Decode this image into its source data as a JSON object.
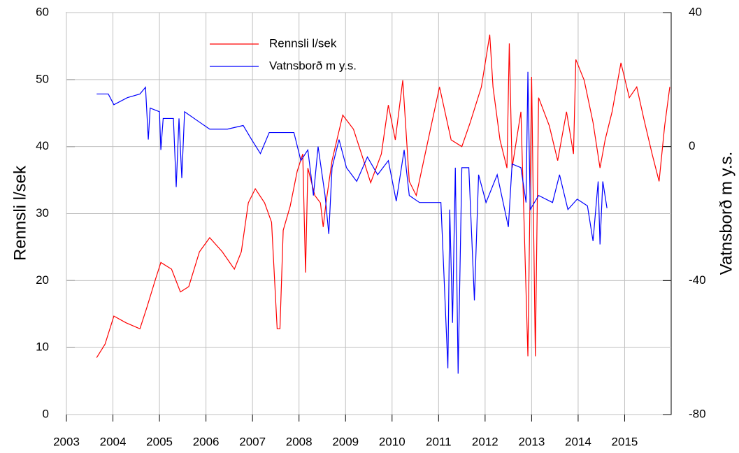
{
  "chart_data": {
    "type": "line",
    "ylabel": "Rennsli l/sek",
    "y2label": "Vatnsborð m y.s.",
    "xlim": [
      2003,
      2016
    ],
    "xticks": [
      2003,
      2004,
      2005,
      2006,
      2007,
      2008,
      2009,
      2010,
      2011,
      2012,
      2013,
      2014,
      2015
    ],
    "ylim": [
      0,
      60
    ],
    "yticks": [
      0,
      10,
      20,
      30,
      40,
      50,
      60
    ],
    "y2lim": [
      -80,
      40
    ],
    "y2ticks": [
      -80,
      -40,
      0,
      40
    ],
    "grid": true,
    "legend": "upper center",
    "series": [
      {
        "name": "Rennsli l/sek",
        "color": "#ff0000",
        "x": [
          2003.65,
          2003.83,
          2004.02,
          2004.28,
          2004.58,
          2004.73,
          2004.91,
          2005.03,
          2005.26,
          2005.45,
          2005.63,
          2005.86,
          2006.08,
          2006.35,
          2006.61,
          2006.76,
          2006.91,
          2007.06,
          2007.26,
          2007.41,
          2007.53,
          2007.59,
          2007.66,
          2007.81,
          2007.96,
          2008.08,
          2008.14,
          2008.19,
          2008.34,
          2008.46,
          2008.52,
          2008.58,
          2008.71,
          2008.94,
          2009.17,
          2009.39,
          2009.54,
          2009.77,
          2009.92,
          2010.07,
          2010.23,
          2010.37,
          2010.52,
          2011.02,
          2011.27,
          2011.5,
          2011.68,
          2011.92,
          2012.1,
          2012.17,
          2012.32,
          2012.47,
          2012.52,
          2012.58,
          2012.77,
          2012.92,
          2013.0,
          2013.08,
          2013.15,
          2013.38,
          2013.56,
          2013.75,
          2013.9,
          2013.95,
          2014.13,
          2014.32,
          2014.47,
          2014.58,
          2014.73,
          2014.92,
          2015.1,
          2015.26,
          2015.41,
          2015.59,
          2015.74,
          2015.86,
          2015.97
        ],
        "values": [
          8.5,
          10.5,
          14.7,
          13.7,
          12.8,
          16,
          20.1,
          22.7,
          21.7,
          18.3,
          19.1,
          24.3,
          26.4,
          24.3,
          21.7,
          24.3,
          31.6,
          33.7,
          31.6,
          28.7,
          12.8,
          12.8,
          27.5,
          31.1,
          36.3,
          38.9,
          21.2,
          36.8,
          32.7,
          31.6,
          28,
          31.6,
          37.9,
          44.7,
          42.6,
          37.9,
          34.6,
          38.9,
          46.2,
          41,
          49.9,
          34.8,
          32.7,
          48.9,
          41,
          40,
          43.6,
          48.9,
          56.7,
          48.9,
          41,
          36.8,
          55.4,
          36.8,
          45.2,
          8.7,
          50.4,
          8.7,
          47.3,
          43.1,
          37.9,
          45.2,
          38.9,
          53,
          49.9,
          43.6,
          36.8,
          41,
          45.2,
          52.5,
          47.3,
          48.9,
          44.2,
          38.9,
          34.8,
          43.1,
          48.9
        ]
      },
      {
        "name": "Vatnsborð m y.s.",
        "color": "#0000ff",
        "axis": "y2",
        "x": [
          2003.65,
          2003.9,
          2004.02,
          2004.31,
          2004.58,
          2004.7,
          2004.76,
          2004.8,
          2005.0,
          2005.03,
          2005.08,
          2005.3,
          2005.36,
          2005.42,
          2005.48,
          2005.54,
          2005.86,
          2006.08,
          2006.46,
          2006.8,
          2006.98,
          2007.17,
          2007.36,
          2007.89,
          2008.04,
          2008.19,
          2008.31,
          2008.41,
          2008.56,
          2008.64,
          2008.71,
          2008.86,
          2009.02,
          2009.24,
          2009.47,
          2009.69,
          2009.92,
          2010.09,
          2010.26,
          2010.37,
          2010.59,
          2011.05,
          2011.2,
          2011.24,
          2011.3,
          2011.36,
          2011.42,
          2011.5,
          2011.65,
          2011.77,
          2011.86,
          2012.02,
          2012.26,
          2012.5,
          2012.58,
          2012.77,
          2012.88,
          2012.92,
          2012.97,
          2013.15,
          2013.45,
          2013.6,
          2013.78,
          2013.98,
          2014.2,
          2014.32,
          2014.43,
          2014.47,
          2014.53,
          2014.62
        ],
        "values": [
          15.7,
          15.7,
          12.5,
          14.6,
          15.7,
          17.7,
          2.1,
          11.5,
          10.4,
          -1,
          8.4,
          8.4,
          -12.1,
          8.4,
          -9.4,
          10.4,
          7.3,
          5.2,
          5.2,
          6.3,
          2.1,
          -2.1,
          4.2,
          4.2,
          -4.2,
          -1,
          -14.6,
          0,
          -14.6,
          -26.1,
          -6.3,
          2.1,
          -6.3,
          -10.4,
          -3.1,
          -8.4,
          -4.2,
          -16.3,
          -1,
          -14.6,
          -16.7,
          -16.7,
          -66.2,
          -18.8,
          -52.6,
          -6.3,
          -67.8,
          -6.3,
          -6.3,
          -45.9,
          -8.4,
          -16.7,
          -8.4,
          -24,
          -5.2,
          -6.3,
          -16.7,
          22.3,
          -18.8,
          -14.6,
          -16.7,
          -8.4,
          -18.8,
          -15.7,
          -17.7,
          -28.2,
          -10.4,
          -29.2,
          -10.4,
          -18.4
        ]
      }
    ]
  }
}
